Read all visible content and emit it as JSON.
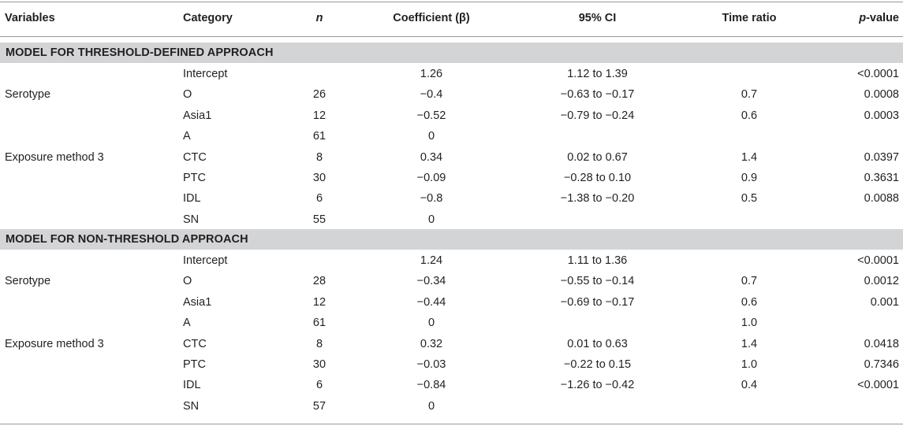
{
  "headers": {
    "variables": "Variables",
    "category": "Category",
    "n": "n",
    "coefficient": "Coefficient (β)",
    "ci": "95% CI",
    "time_ratio": "Time ratio",
    "p_value": "p-value"
  },
  "sections": [
    {
      "title": "MODEL FOR THRESHOLD-DEFINED APPROACH",
      "rows": [
        {
          "variable": "",
          "category": "Intercept",
          "n": "",
          "coef": "1.26",
          "ci": "1.12 to 1.39",
          "tr": "",
          "p": "<0.0001"
        },
        {
          "variable": "Serotype",
          "category": "O",
          "n": "26",
          "coef": "−0.4",
          "ci": "−0.63 to −0.17",
          "tr": "0.7",
          "p": "0.0008"
        },
        {
          "variable": "",
          "category": "Asia1",
          "n": "12",
          "coef": "−0.52",
          "ci": "−0.79 to −0.24",
          "tr": "0.6",
          "p": "0.0003"
        },
        {
          "variable": "",
          "category": "A",
          "n": "61",
          "coef": "0",
          "ci": "",
          "tr": "",
          "p": ""
        },
        {
          "variable": "Exposure method 3",
          "category": "CTC",
          "n": "8",
          "coef": "0.34",
          "ci": "0.02 to 0.67",
          "tr": "1.4",
          "p": "0.0397"
        },
        {
          "variable": "",
          "category": "PTC",
          "n": "30",
          "coef": "−0.09",
          "ci": "−0.28 to 0.10",
          "tr": "0.9",
          "p": "0.3631"
        },
        {
          "variable": "",
          "category": "IDL",
          "n": "6",
          "coef": "−0.8",
          "ci": "−1.38 to −0.20",
          "tr": "0.5",
          "p": "0.0088"
        },
        {
          "variable": "",
          "category": "SN",
          "n": "55",
          "coef": "0",
          "ci": "",
          "tr": "",
          "p": ""
        }
      ]
    },
    {
      "title": "MODEL FOR NON-THRESHOLD APPROACH",
      "rows": [
        {
          "variable": "",
          "category": "Intercept",
          "n": "",
          "coef": "1.24",
          "ci": "1.11 to 1.36",
          "tr": "",
          "p": "<0.0001"
        },
        {
          "variable": "Serotype",
          "category": "O",
          "n": "28",
          "coef": "−0.34",
          "ci": "−0.55 to −0.14",
          "tr": "0.7",
          "p": "0.0012"
        },
        {
          "variable": "",
          "category": "Asia1",
          "n": "12",
          "coef": "−0.44",
          "ci": "−0.69 to −0.17",
          "tr": "0.6",
          "p": "0.001"
        },
        {
          "variable": "",
          "category": "A",
          "n": "61",
          "coef": "0",
          "ci": "",
          "tr": "1.0",
          "p": ""
        },
        {
          "variable": "Exposure method 3",
          "category": "CTC",
          "n": "8",
          "coef": "0.32",
          "ci": "0.01 to 0.63",
          "tr": "1.4",
          "p": "0.0418"
        },
        {
          "variable": "",
          "category": "PTC",
          "n": "30",
          "coef": "−0.03",
          "ci": "−0.22 to 0.15",
          "tr": "1.0",
          "p": "0.7346"
        },
        {
          "variable": "",
          "category": "IDL",
          "n": "6",
          "coef": "−0.84",
          "ci": "−1.26 to −0.42",
          "tr": "0.4",
          "p": "<0.0001"
        },
        {
          "variable": "",
          "category": "SN",
          "n": "57",
          "coef": "0",
          "ci": "",
          "tr": "",
          "p": ""
        }
      ]
    }
  ]
}
